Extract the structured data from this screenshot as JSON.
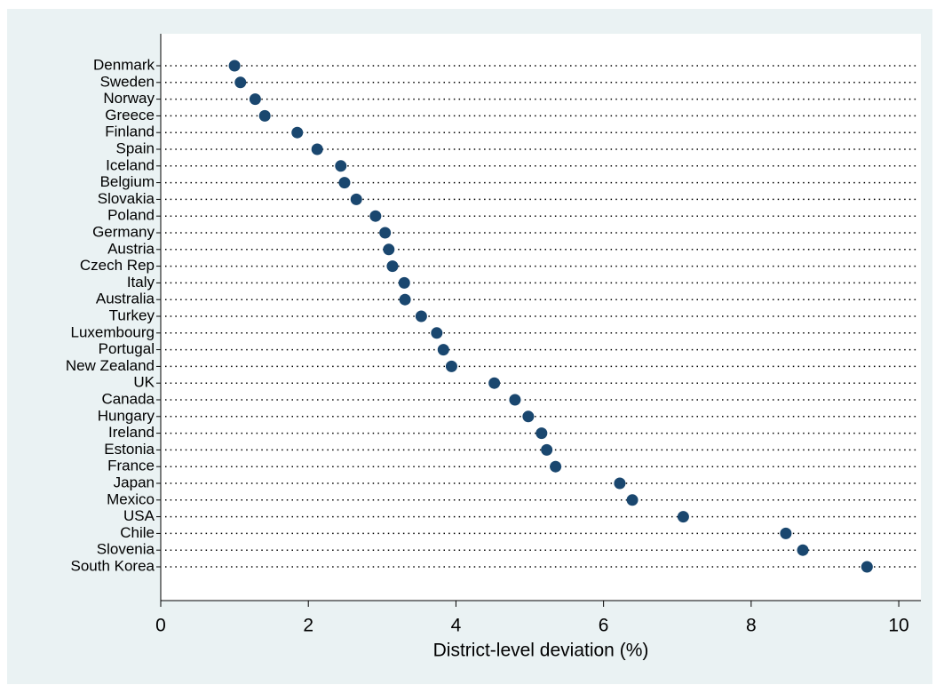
{
  "chart_data": {
    "type": "dot",
    "x_label": "District-level deviation (%)",
    "categories": [
      "Denmark",
      "Sweden",
      "Norway",
      "Greece",
      "Finland",
      "Spain",
      "Iceland",
      "Belgium",
      "Slovakia",
      "Poland",
      "Germany",
      "Austria",
      "Czech Rep",
      "Italy",
      "Australia",
      "Turkey",
      "Luxembourg",
      "Portugal",
      "New Zealand",
      "UK",
      "Canada",
      "Hungary",
      "Ireland",
      "Estonia",
      "France",
      "Japan",
      "Mexico",
      "USA",
      "Chile",
      "Slovenia",
      "South Korea"
    ],
    "values": [
      1.0,
      1.08,
      1.28,
      1.41,
      1.85,
      2.12,
      2.44,
      2.49,
      2.65,
      2.91,
      3.04,
      3.09,
      3.14,
      3.3,
      3.31,
      3.53,
      3.74,
      3.83,
      3.94,
      4.52,
      4.8,
      4.98,
      5.16,
      5.23,
      5.35,
      6.22,
      6.39,
      7.08,
      8.47,
      8.7,
      9.57
    ],
    "color": "#1a476f",
    "xlim": [
      0,
      10.3
    ],
    "xticks": [
      0,
      2,
      4,
      6,
      8,
      10
    ]
  }
}
